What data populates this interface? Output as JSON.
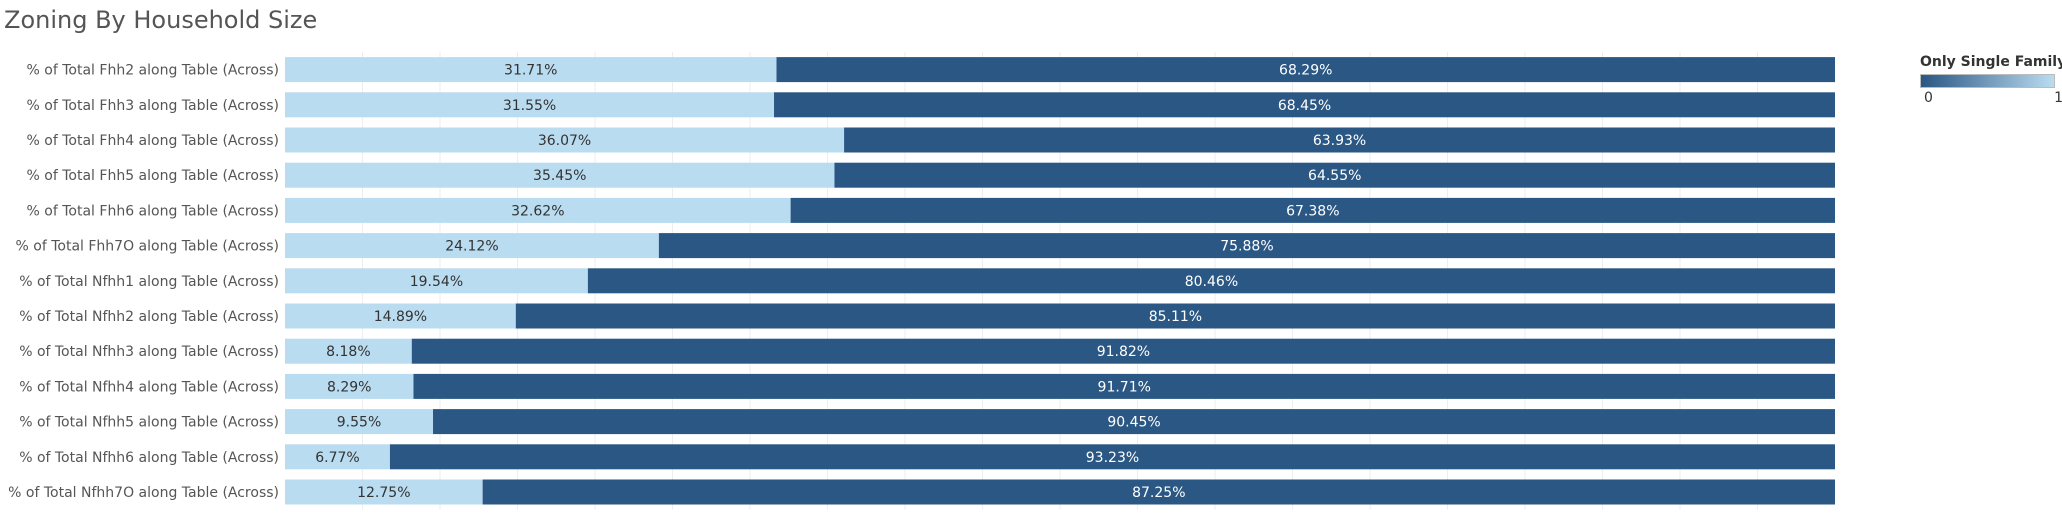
{
  "chart_data": {
    "type": "bar",
    "orientation": "horizontal",
    "stacked": true,
    "title": "Zoning By Household Size",
    "xlabel": "",
    "ylabel": "",
    "xlim": [
      0,
      100
    ],
    "grid": true,
    "legend_position": "top-right",
    "categories": [
      "% of Total Fhh2 along Table (Across)",
      "% of Total Fhh3 along Table (Across)",
      "% of Total Fhh4 along Table (Across)",
      "% of Total Fhh5 along Table (Across)",
      "% of Total Fhh6 along Table (Across)",
      "% of Total Fhh7O along Table (Across)",
      "% of Total Nfhh1 along Table (Across)",
      "% of Total Nfhh2 along Table (Across)",
      "% of Total Nfhh3 along Table (Across)",
      "% of Total Nfhh4 along Table (Across)",
      "% of Total Nfhh5 along Table (Across)",
      "% of Total Nfhh6 along Table (Across)",
      "% of Total Nfhh7O along Table (Across)"
    ],
    "series": [
      {
        "value_code": 1,
        "color": "#b9dcf0",
        "label_color": "#333333",
        "values": [
          31.71,
          31.55,
          36.07,
          35.45,
          32.62,
          24.12,
          19.54,
          14.89,
          8.18,
          8.29,
          9.55,
          6.77,
          12.75
        ],
        "labels": [
          "31.71%",
          "31.55%",
          "36.07%",
          "35.45%",
          "32.62%",
          "24.12%",
          "19.54%",
          "14.89%",
          "8.18%",
          "8.29%",
          "9.55%",
          "6.77%",
          "12.75%"
        ]
      },
      {
        "value_code": 0,
        "color": "#2a5783",
        "label_color": "#ffffff",
        "values": [
          68.29,
          68.45,
          63.93,
          64.55,
          67.38,
          75.88,
          80.46,
          85.11,
          91.82,
          91.71,
          90.45,
          93.23,
          87.25
        ],
        "labels": [
          "68.29%",
          "68.45%",
          "63.93%",
          "64.55%",
          "67.38%",
          "75.88%",
          "80.46%",
          "85.11%",
          "91.82%",
          "91.71%",
          "90.45%",
          "93.23%",
          "87.25%"
        ]
      }
    ],
    "legend": {
      "title": "Only Single Family",
      "min_label": "0",
      "max_label": "1",
      "color_low": "#2a5783",
      "color_high": "#b9dcf0"
    },
    "colors": {
      "category_label": "#555555",
      "gridline": "#eeeeee"
    }
  }
}
